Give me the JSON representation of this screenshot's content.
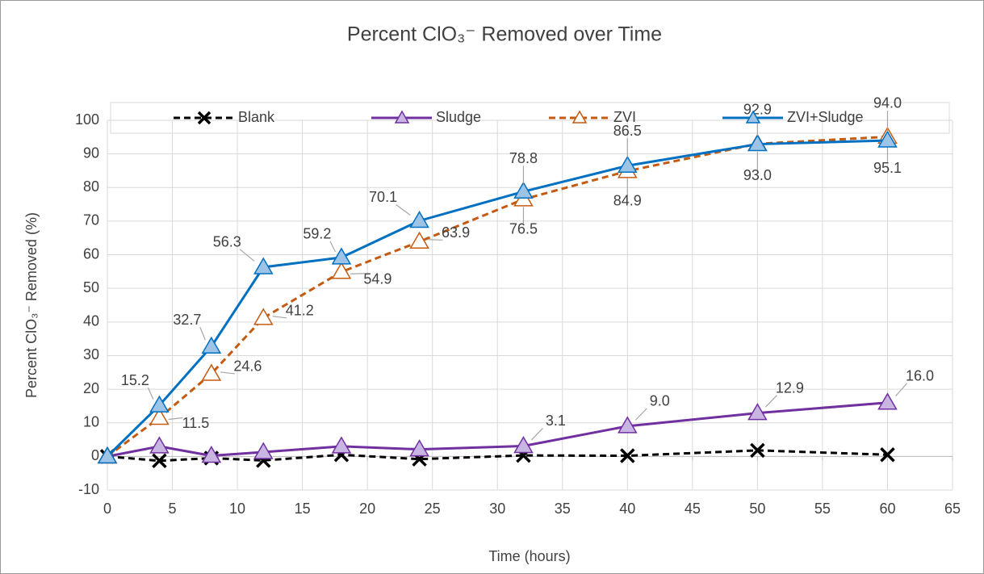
{
  "chart_data": {
    "type": "line",
    "title": "Percent ClO₃⁻ Removed over Time",
    "x_label": "Time (hours)",
    "y_label": "Percent ClO₃⁻ Removed (%)",
    "x": [
      0,
      4,
      8,
      12,
      18,
      24,
      32,
      40,
      50,
      60
    ],
    "xlim": [
      0,
      65
    ],
    "xticks": [
      0,
      5,
      10,
      15,
      20,
      25,
      30,
      35,
      40,
      45,
      50,
      55,
      60,
      65
    ],
    "ylim": [
      -10,
      100
    ],
    "yticks": [
      -10,
      0,
      10,
      20,
      30,
      40,
      50,
      60,
      70,
      80,
      90,
      100
    ],
    "grid": true,
    "legend": "top",
    "series": [
      {
        "name": "Blank",
        "color": "#000000",
        "marker": "x",
        "dashed": true,
        "values": [
          0,
          -1.3,
          -0.5,
          -1.2,
          0.5,
          -0.8,
          0.3,
          0.2,
          1.8,
          0.5
        ]
      },
      {
        "name": "Sludge",
        "color": "#7030a0",
        "marker_fill": "#c9b5e2",
        "marker": "triangle",
        "dashed": false,
        "values": [
          0,
          3.0,
          0.2,
          1.3,
          3.0,
          2.1,
          3.1,
          9.0,
          12.9,
          16.0
        ],
        "value_labels": [
          null,
          null,
          null,
          null,
          null,
          null,
          "3.1",
          "9.0",
          "12.9",
          "16.0"
        ]
      },
      {
        "name": "ZVI",
        "color": "#c55a11",
        "marker_fill": "#ffffff",
        "marker": "triangle",
        "dashed": true,
        "values": [
          0,
          11.5,
          24.6,
          41.2,
          54.9,
          63.9,
          76.5,
          84.9,
          93.0,
          95.1
        ],
        "value_labels": [
          null,
          "11.5",
          "24.6",
          "41.2",
          "54.9",
          "63.9",
          "76.5",
          "84.9",
          "93.0",
          "95.1"
        ]
      },
      {
        "name": "ZVI+Sludge",
        "color": "#0070c0",
        "marker_fill": "#9dc3e6",
        "marker": "triangle",
        "dashed": false,
        "values": [
          0,
          15.2,
          32.7,
          56.3,
          59.2,
          70.1,
          78.8,
          86.5,
          92.9,
          94.0
        ],
        "value_labels": [
          null,
          "15.2",
          "32.7",
          "56.3",
          "59.2",
          "70.1",
          "78.8",
          "86.5",
          "92.9",
          "94.0"
        ]
      }
    ]
  }
}
